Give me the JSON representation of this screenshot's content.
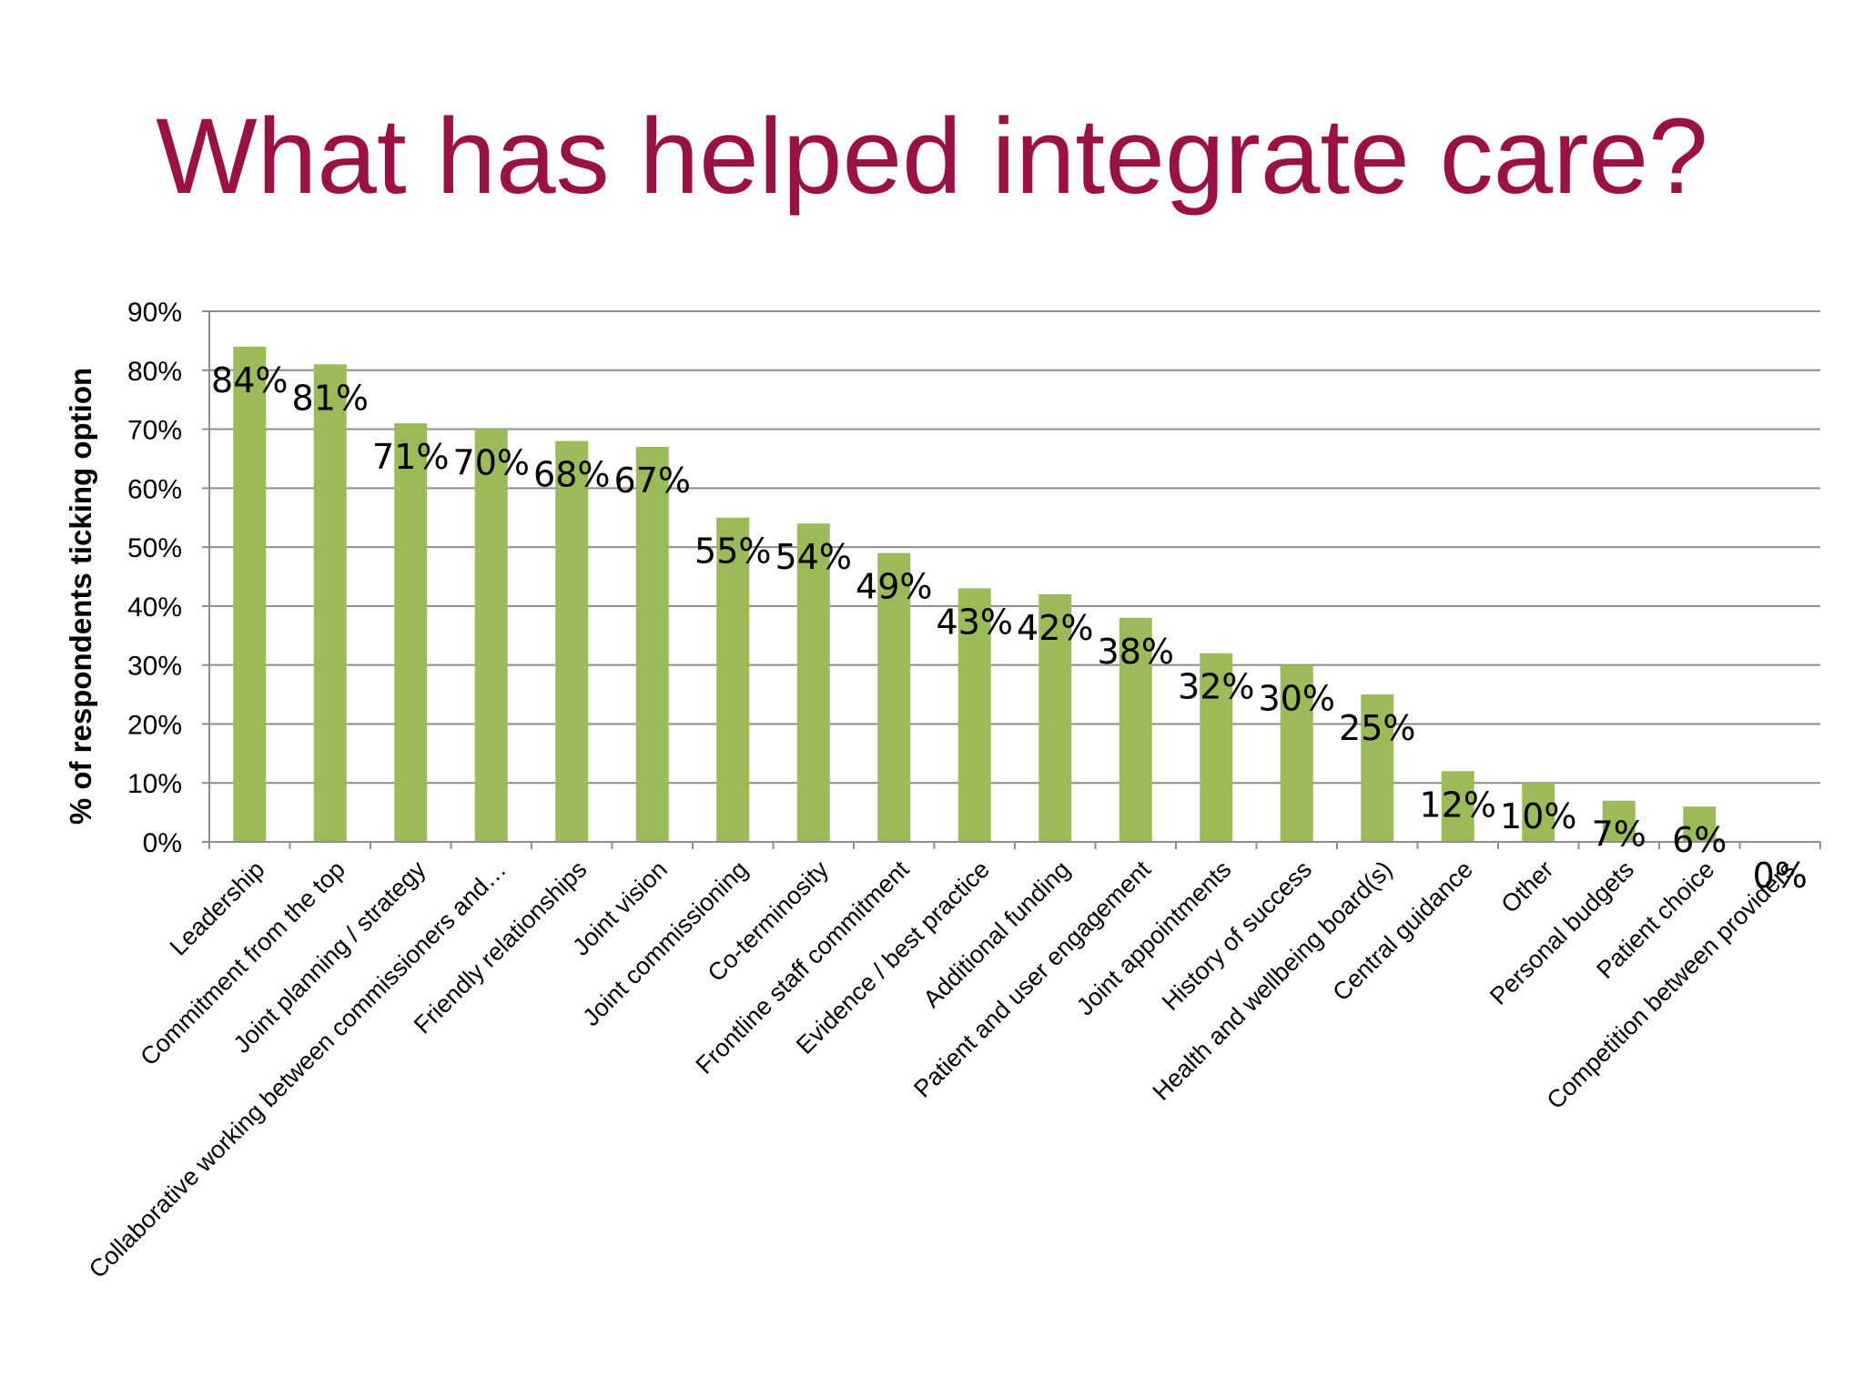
{
  "slide": {
    "title": "What has helped integrate care?"
  },
  "chart_data": {
    "type": "bar",
    "title": "What has helped integrate care?",
    "ylabel": "% of respondents ticking option",
    "xlabel": "",
    "ylim": [
      0,
      90
    ],
    "yticks": [
      "0%",
      "10%",
      "20%",
      "30%",
      "40%",
      "50%",
      "60%",
      "70%",
      "80%",
      "90%"
    ],
    "grid": true,
    "legend": "none",
    "bar_color": "#9bbb59",
    "categories": [
      "Leadership",
      "Commitment from the top",
      "Joint planning / strategy",
      "Collaborative working between commissioners and…",
      "Friendly relationships",
      "Joint vision",
      "Joint commissioning",
      "Co-terminosity",
      "Frontline staff commitment",
      "Evidence / best practice",
      "Additional funding",
      "Patient and user engagement",
      "Joint appointments",
      "History of success",
      "Health and wellbeing board(s)",
      "Central guidance",
      "Other",
      "Personal budgets",
      "Patient choice",
      "Competition between providers"
    ],
    "values": [
      84,
      81,
      71,
      70,
      68,
      67,
      55,
      54,
      49,
      43,
      42,
      38,
      32,
      30,
      25,
      12,
      10,
      7,
      6,
      0
    ],
    "data_labels": [
      "84%",
      "81%",
      "71%",
      "70%",
      "68%",
      "67%",
      "55%",
      "54%",
      "49%",
      "43%",
      "42%",
      "38%",
      "32%",
      "30%",
      "25%",
      "12%",
      "10%",
      "7%",
      "6%",
      "0%"
    ]
  }
}
